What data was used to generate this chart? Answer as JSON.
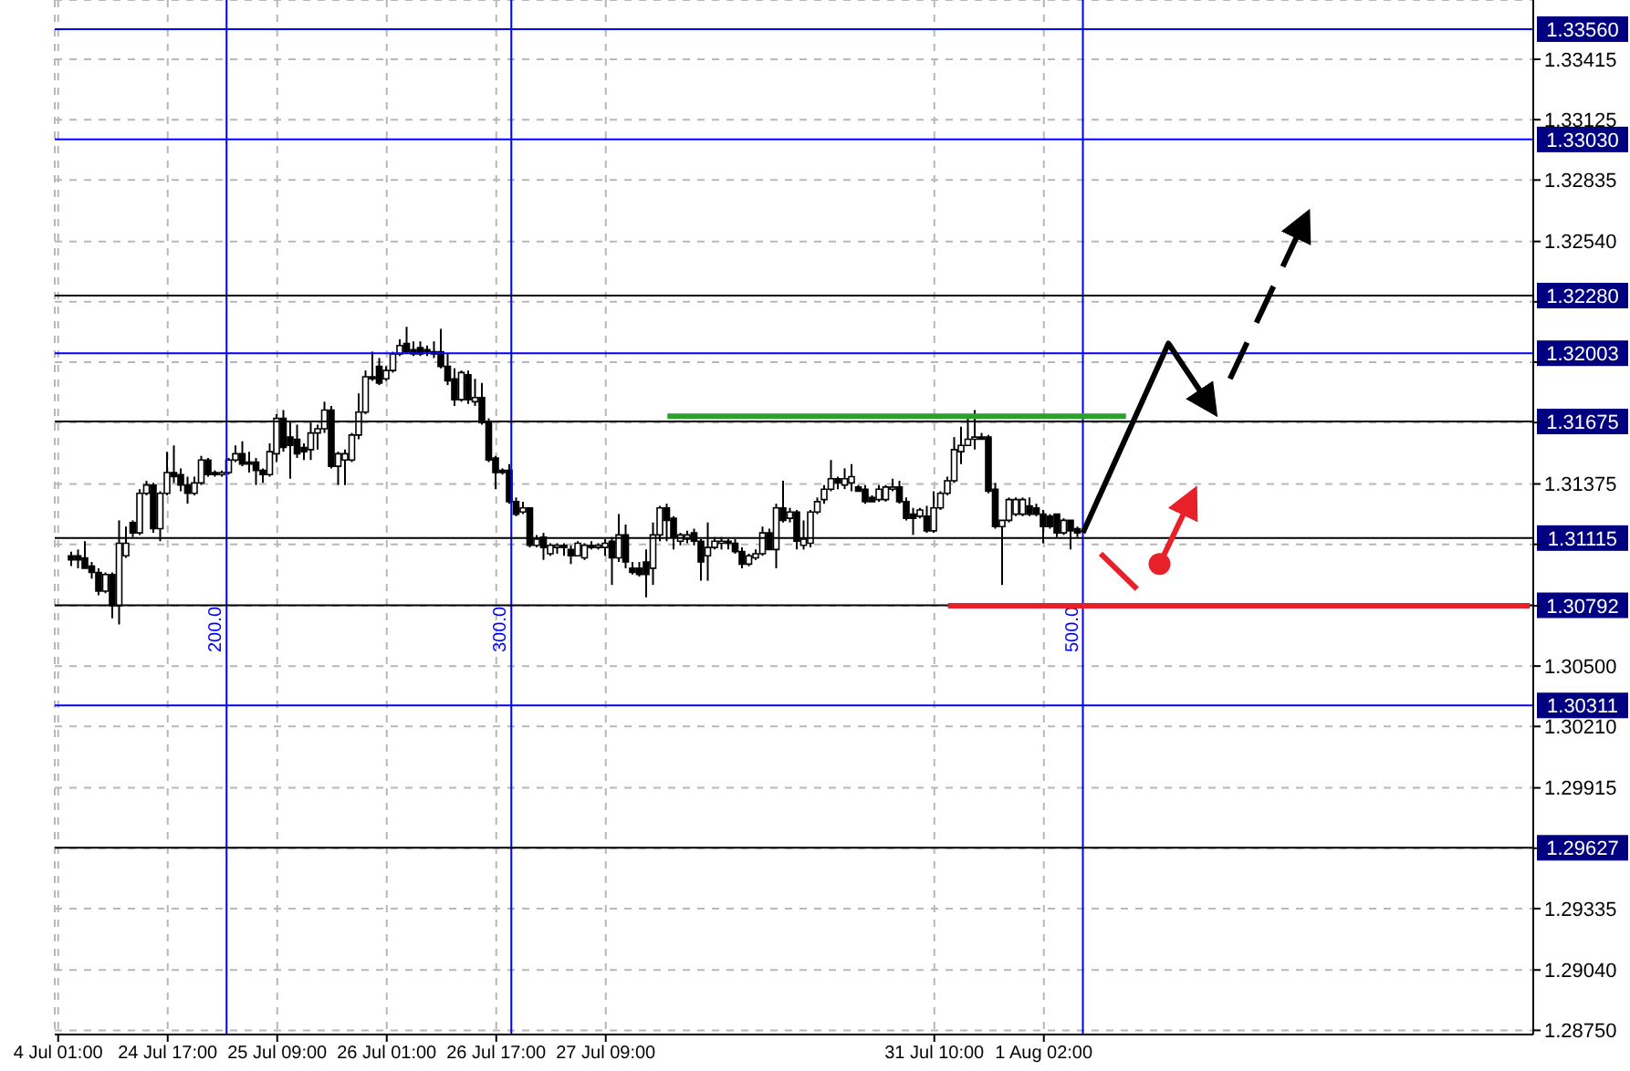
{
  "chart_data": {
    "type": "candlestick",
    "color": "#000000",
    "categories": [
      "4 Jul 01:00",
      null,
      null,
      null,
      null,
      null,
      null,
      null,
      null,
      null,
      null,
      null,
      null,
      null,
      null,
      null,
      "24 Jul 17:00",
      null,
      null,
      null,
      null,
      null,
      null,
      null,
      null,
      null,
      null,
      null,
      null,
      null,
      null,
      null,
      "25 Jul 09:00",
      null,
      null,
      null,
      null,
      null,
      null,
      null,
      null,
      null,
      null,
      null,
      null,
      null,
      null,
      null,
      "26 Jul 01:00",
      null,
      null,
      null,
      null,
      null,
      null,
      null,
      null,
      null,
      null,
      null,
      null,
      null,
      null,
      null,
      "26 Jul 17:00",
      null,
      null,
      null,
      null,
      null,
      null,
      null,
      null,
      null,
      null,
      null,
      null,
      null,
      null,
      null,
      "27 Jul 09:00",
      null,
      null,
      null,
      null,
      null,
      null,
      null,
      null,
      null,
      null,
      null,
      null,
      null,
      null,
      null,
      null,
      null,
      null,
      null,
      null,
      null,
      null,
      null,
      null,
      null,
      null,
      null,
      null,
      null,
      null,
      null,
      null,
      null,
      null,
      null,
      null,
      null,
      null,
      null,
      null,
      null,
      null,
      null,
      null,
      null,
      null,
      null,
      "31 Jul 10:00",
      null,
      null,
      null,
      null,
      null,
      null,
      null,
      null,
      null,
      null,
      null,
      null,
      null,
      null,
      null,
      "1 Aug 02:00",
      null,
      null,
      null,
      null,
      null,
      null,
      null,
      null,
      null,
      null,
      null,
      null,
      null,
      null,
      null,
      null,
      null,
      null,
      null,
      null,
      null,
      null,
      null,
      null,
      null,
      null,
      null,
      null,
      null,
      null,
      null,
      null,
      null,
      null,
      null,
      null,
      null,
      null,
      null,
      null,
      null,
      null,
      null,
      null,
      null,
      null,
      null,
      null,
      null,
      null,
      null,
      null,
      null,
      null,
      null,
      null,
      null,
      null,
      null,
      null,
      null,
      null,
      null,
      null,
      null,
      null,
      null,
      null,
      null,
      null,
      null
    ],
    "ohlc": [
      null,
      null,
      [
        1.3103,
        1.3105,
        1.3098,
        1.3101
      ],
      [
        1.3103,
        1.3106,
        1.3097,
        1.3101
      ],
      [
        1.3102,
        1.311,
        1.3097,
        1.3097
      ],
      [
        1.3098,
        1.31,
        1.3092,
        1.3095
      ],
      [
        1.3095,
        1.3097,
        1.3084,
        1.3086
      ],
      [
        1.3086,
        1.3095,
        1.3085,
        1.3094
      ],
      [
        1.3094,
        1.3095,
        1.3073,
        1.3079
      ],
      [
        1.3079,
        1.312,
        1.307,
        1.3109
      ],
      [
        1.3103,
        1.3117,
        1.3102,
        1.3109
      ],
      [
        1.3119,
        1.312,
        1.3112,
        1.3114
      ],
      [
        1.3114,
        1.3135,
        1.3113,
        1.3133
      ],
      [
        1.3133,
        1.3139,
        1.3132,
        1.3137
      ],
      [
        1.3137,
        1.3138,
        1.3114,
        1.3116
      ],
      [
        1.3116,
        1.3134,
        1.311,
        1.3133
      ],
      [
        1.3133,
        1.3153,
        1.3132,
        1.3143
      ],
      [
        1.3143,
        1.3156,
        1.3138,
        1.3141
      ],
      [
        1.3142,
        1.3145,
        1.3134,
        1.3137
      ],
      [
        1.3137,
        1.3141,
        1.3128,
        1.3133
      ],
      [
        1.3133,
        1.3141,
        1.3132,
        1.3138
      ],
      [
        1.3138,
        1.3151,
        1.3137,
        1.3149
      ],
      [
        1.3149,
        1.315,
        1.3141,
        1.3142
      ],
      [
        1.3143,
        1.3144,
        1.3141,
        1.3142
      ],
      [
        1.3142,
        1.3144,
        1.3141,
        1.3143
      ],
      [
        1.3143,
        1.315,
        1.3142,
        1.3149
      ],
      [
        1.3149,
        1.3156,
        1.3148,
        1.3152
      ],
      [
        1.3152,
        1.3158,
        1.3146,
        1.3147
      ],
      [
        1.3148,
        1.3153,
        1.3143,
        1.3147
      ],
      [
        1.3148,
        1.315,
        1.3137,
        1.3144
      ],
      [
        1.3144,
        1.3145,
        1.3138,
        1.3142
      ],
      [
        1.3142,
        1.3157,
        1.3141,
        1.3153
      ],
      [
        1.3152,
        1.3171,
        1.3148,
        1.3169
      ],
      [
        1.3169,
        1.3173,
        1.3153,
        1.3155
      ],
      [
        1.316,
        1.3167,
        1.314,
        1.3156
      ],
      [
        1.3159,
        1.3166,
        1.315,
        1.3152
      ],
      [
        1.3155,
        1.3157,
        1.3149,
        1.3153
      ],
      [
        1.3154,
        1.3167,
        1.3149,
        1.3162
      ],
      [
        1.3162,
        1.3166,
        1.3154,
        1.3164
      ],
      [
        1.3164,
        1.3177,
        1.3162,
        1.3173
      ],
      [
        1.3173,
        1.3175,
        1.3145,
        1.3146
      ],
      [
        1.3146,
        1.3153,
        1.3137,
        1.3152
      ],
      [
        1.3149,
        1.3154,
        1.3137,
        1.3152
      ],
      [
        1.3149,
        1.3162,
        1.3148,
        1.3161
      ],
      [
        1.3161,
        1.3181,
        1.3159,
        1.3172
      ],
      [
        1.3172,
        1.3192,
        1.3171,
        1.3189
      ],
      [
        1.3189,
        1.3201,
        1.3187,
        1.3188
      ],
      [
        1.3194,
        1.3198,
        1.3185,
        1.3186
      ],
      [
        1.3188,
        1.3194,
        1.3187,
        1.3192
      ],
      [
        1.3192,
        1.3201,
        1.3191,
        1.32
      ],
      [
        1.32,
        1.3207,
        1.3199,
        1.3204
      ],
      [
        1.3205,
        1.3213,
        1.32,
        1.3201
      ],
      [
        1.3202,
        1.3206,
        1.3199,
        1.32
      ],
      [
        1.3203,
        1.3206,
        1.3199,
        1.32
      ],
      [
        1.3202,
        1.3204,
        1.3199,
        1.3201
      ],
      [
        1.3201,
        1.3206,
        1.3198,
        1.32
      ],
      [
        1.3201,
        1.3212,
        1.3193,
        1.3194
      ],
      [
        1.3194,
        1.32,
        1.3185,
        1.3187
      ],
      [
        1.3188,
        1.3193,
        1.3175,
        1.3178
      ],
      [
        1.3178,
        1.3192,
        1.3177,
        1.3191
      ],
      [
        1.319,
        1.3192,
        1.3176,
        1.3178
      ],
      [
        1.3177,
        1.3188,
        1.3175,
        1.3179
      ],
      [
        1.3179,
        1.3186,
        1.3166,
        1.3167
      ],
      [
        1.3167,
        1.3169,
        1.3148,
        1.3149
      ],
      [
        1.315,
        1.3151,
        1.3135,
        1.3143
      ],
      [
        1.3144,
        1.3145,
        1.3142,
        1.3143
      ],
      [
        1.3144,
        1.3147,
        1.3128,
        1.3129
      ],
      [
        1.3129,
        1.3131,
        1.3122,
        1.3123
      ],
      [
        1.3124,
        1.3129,
        1.3123,
        1.3126
      ],
      [
        1.3126,
        1.3126,
        1.3107,
        1.3108
      ],
      [
        1.3108,
        1.3113,
        1.3107,
        1.3111
      ],
      [
        1.3112,
        1.3114,
        1.3101,
        1.3107
      ],
      [
        1.3104,
        1.3109,
        1.3103,
        1.3108
      ],
      [
        1.3107,
        1.3109,
        1.3104,
        1.3108
      ],
      [
        1.3108,
        1.3109,
        1.3103,
        1.3107
      ],
      [
        1.3106,
        1.3108,
        1.3099,
        1.3103
      ],
      [
        1.3103,
        1.311,
        1.3103,
        1.3109
      ],
      [
        1.3102,
        1.3109,
        1.3101,
        1.3108
      ],
      [
        1.3108,
        1.311,
        1.3106,
        1.3107
      ],
      [
        1.3107,
        1.3109,
        1.3106,
        1.3108
      ],
      [
        1.3107,
        1.3111,
        1.3103,
        1.3109
      ],
      [
        1.311,
        1.3112,
        1.3089,
        1.3102
      ],
      [
        1.3102,
        1.3123,
        1.31,
        1.3113
      ],
      [
        1.3113,
        1.3118,
        1.3097,
        1.31
      ],
      [
        1.3097,
        1.31,
        1.3094,
        1.3095
      ],
      [
        1.3097,
        1.31,
        1.3093,
        1.3094
      ],
      [
        1.31,
        1.3106,
        1.3083,
        1.3094
      ],
      [
        1.3097,
        1.3119,
        1.3089,
        1.3113
      ],
      [
        1.3113,
        1.3127,
        1.311,
        1.3126
      ],
      [
        1.3126,
        1.3128,
        1.311,
        1.312
      ],
      [
        1.3121,
        1.3122,
        1.3106,
        1.3112
      ],
      [
        1.311,
        1.3114,
        1.3108,
        1.3113
      ],
      [
        1.3111,
        1.3115,
        1.3109,
        1.3113
      ],
      [
        1.3114,
        1.3116,
        1.3108,
        1.311
      ],
      [
        1.311,
        1.3111,
        1.3091,
        1.31
      ],
      [
        1.3103,
        1.3119,
        1.3091,
        1.3107
      ],
      [
        1.3107,
        1.3112,
        1.3106,
        1.311
      ],
      [
        1.3109,
        1.3112,
        1.3106,
        1.311
      ],
      [
        1.311,
        1.3111,
        1.3106,
        1.3109
      ],
      [
        1.3109,
        1.3111,
        1.3104,
        1.3105
      ],
      [
        1.3105,
        1.3107,
        1.3097,
        1.3099
      ],
      [
        1.3099,
        1.3104,
        1.3098,
        1.3103
      ],
      [
        1.3102,
        1.3106,
        1.3101,
        1.3104
      ],
      [
        1.3104,
        1.3117,
        1.3103,
        1.3114
      ],
      [
        1.3114,
        1.3116,
        1.3106,
        1.3106
      ],
      [
        1.3106,
        1.3128,
        1.3097,
        1.3126
      ],
      [
        1.3126,
        1.3139,
        1.3119,
        1.312
      ],
      [
        1.3121,
        1.3126,
        1.3119,
        1.3124
      ],
      [
        1.3124,
        1.3125,
        1.3106,
        1.311
      ],
      [
        1.3108,
        1.312,
        1.3106,
        1.3111
      ],
      [
        1.3109,
        1.3125,
        1.3107,
        1.3124
      ],
      [
        1.3124,
        1.3131,
        1.3123,
        1.3129
      ],
      [
        1.313,
        1.3137,
        1.3128,
        1.3135
      ],
      [
        1.3135,
        1.3149,
        1.3134,
        1.314
      ],
      [
        1.314,
        1.3141,
        1.3135,
        1.3138
      ],
      [
        1.3137,
        1.3145,
        1.3135,
        1.314
      ],
      [
        1.3138,
        1.3147,
        1.3134,
        1.3141
      ],
      [
        1.3136,
        1.3137,
        1.3134,
        1.3134
      ],
      [
        1.3135,
        1.3137,
        1.3128,
        1.3129
      ],
      [
        1.3131,
        1.3132,
        1.3129,
        1.3129
      ],
      [
        1.313,
        1.3137,
        1.3129,
        1.3135
      ],
      [
        1.313,
        1.3137,
        1.3129,
        1.3136
      ],
      [
        1.3135,
        1.314,
        1.3134,
        1.3136
      ],
      [
        1.3136,
        1.3139,
        1.3128,
        1.3129
      ],
      [
        1.3129,
        1.3131,
        1.312,
        1.3121
      ],
      [
        1.3123,
        1.3126,
        1.3113,
        1.3121
      ],
      [
        1.3122,
        1.3126,
        1.3121,
        1.3125
      ],
      [
        1.3122,
        1.3127,
        1.3114,
        1.3115
      ],
      [
        1.3115,
        1.3134,
        1.3114,
        1.3126
      ],
      [
        1.3126,
        1.3134,
        1.3125,
        1.3133
      ],
      [
        1.3133,
        1.3141,
        1.3132,
        1.3139
      ],
      [
        1.3139,
        1.316,
        1.3138,
        1.3154
      ],
      [
        1.3153,
        1.3165,
        1.3147,
        1.3156
      ],
      [
        1.3156,
        1.3169,
        1.3156,
        1.3159
      ],
      [
        1.3159,
        1.3173,
        1.3154,
        1.316
      ],
      [
        1.316,
        1.3162,
        1.3159,
        1.3159
      ],
      [
        1.316,
        1.3161,
        1.3133,
        1.3134
      ],
      [
        1.3135,
        1.3138,
        1.3116,
        1.3117
      ],
      [
        1.3117,
        1.312,
        1.3089,
        1.312
      ],
      [
        1.312,
        1.3131,
        1.3119,
        1.313
      ],
      [
        1.3123,
        1.3131,
        1.3122,
        1.313
      ],
      [
        1.3123,
        1.3131,
        1.3122,
        1.313
      ],
      [
        1.3127,
        1.3131,
        1.3122,
        1.3123
      ],
      [
        1.3126,
        1.3128,
        1.3122,
        1.3123
      ],
      [
        1.3123,
        1.3125,
        1.3109,
        1.3117
      ],
      [
        1.3122,
        1.3123,
        1.3116,
        1.3117
      ],
      [
        1.3123,
        1.3123,
        1.3112,
        1.3114
      ],
      [
        1.3114,
        1.3121,
        1.3113,
        1.312
      ],
      [
        1.312,
        1.312,
        1.3106,
        1.3115
      ],
      [
        1.3116,
        1.3117,
        1.3112,
        1.3114
      ],
      null,
      null,
      null,
      null,
      null,
      null,
      null,
      null,
      null,
      null,
      null,
      null,
      null,
      null,
      null,
      null,
      null,
      null,
      null,
      null,
      null,
      null,
      null,
      null,
      null,
      null,
      null,
      null,
      null,
      null,
      null,
      null,
      null,
      null,
      null,
      null,
      null,
      null,
      null,
      null,
      null,
      null,
      null,
      null,
      null,
      null,
      null,
      null,
      null,
      null,
      null,
      null,
      null,
      null,
      null,
      null,
      null,
      null,
      null,
      null,
      null,
      null,
      null,
      null,
      null,
      null
    ],
    "series": [
      {
        "type": "line",
        "color": "#2ca02c",
        "values": [
          null,
          null,
          null,
          null,
          null,
          null,
          null,
          null,
          null,
          null,
          null,
          null,
          null,
          null,
          null,
          null,
          null,
          null,
          null,
          null,
          null,
          null,
          null,
          null,
          null,
          null,
          null,
          null,
          null,
          null,
          null,
          null,
          null,
          null,
          null,
          null,
          null,
          null,
          null,
          null,
          null,
          null,
          null,
          null,
          null,
          null,
          null,
          null,
          null,
          null,
          null,
          null,
          null,
          null,
          null,
          null,
          null,
          null,
          null,
          null,
          null,
          null,
          null,
          null,
          null,
          null,
          null,
          null,
          null,
          null,
          null,
          null,
          null,
          null,
          null,
          null,
          null,
          null,
          null,
          null,
          null,
          null,
          null,
          null,
          null,
          null,
          null,
          null,
          null,
          1.317,
          null,
          null,
          null,
          null,
          null,
          null,
          null,
          null,
          null,
          null,
          null,
          null,
          null,
          null,
          null,
          null,
          null,
          null,
          null,
          null,
          null,
          null,
          null,
          null,
          null,
          null,
          null,
          null,
          null,
          null,
          null,
          null,
          null,
          null,
          null,
          null,
          null,
          null,
          null,
          null,
          null,
          null,
          null,
          null,
          null,
          null,
          null,
          null,
          null,
          null,
          null,
          null,
          null,
          null,
          null,
          null,
          null,
          null,
          null,
          null,
          null,
          null,
          null,
          null,
          null,
          null,
          1.317,
          null,
          null,
          null,
          null,
          null,
          null,
          null,
          null,
          null,
          null,
          null,
          null,
          null,
          null,
          null,
          null,
          null,
          null,
          null,
          null,
          null,
          null,
          null,
          null,
          null,
          null,
          null,
          null,
          null,
          null,
          null,
          null,
          null,
          null,
          null,
          null,
          null,
          null,
          null,
          null,
          null,
          null,
          null,
          null,
          null,
          null,
          null,
          null,
          null,
          null,
          null,
          null,
          null,
          null,
          null,
          null,
          null,
          null,
          null
        ]
      },
      {
        "type": "line",
        "color": "#e8202a",
        "values": [
          null,
          null,
          null,
          null,
          null,
          null,
          null,
          null,
          null,
          null,
          null,
          null,
          null,
          null,
          null,
          null,
          null,
          null,
          null,
          null,
          null,
          null,
          null,
          null,
          null,
          null,
          null,
          null,
          null,
          null,
          null,
          null,
          null,
          null,
          null,
          null,
          null,
          null,
          null,
          null,
          null,
          null,
          null,
          null,
          null,
          null,
          null,
          null,
          null,
          null,
          null,
          null,
          null,
          null,
          null,
          null,
          null,
          null,
          null,
          null,
          null,
          null,
          null,
          null,
          null,
          null,
          null,
          null,
          null,
          null,
          null,
          null,
          null,
          null,
          null,
          null,
          null,
          null,
          null,
          null,
          null,
          null,
          null,
          null,
          null,
          null,
          null,
          null,
          null,
          null,
          null,
          null,
          null,
          null,
          null,
          null,
          null,
          null,
          null,
          null,
          null,
          null,
          null,
          null,
          null,
          null,
          null,
          null,
          null,
          null,
          null,
          null,
          null,
          null,
          null,
          null,
          null,
          null,
          null,
          null,
          null,
          null,
          null,
          null,
          null,
          null,
          null,
          null,
          null,
          null,
          1.3079,
          null,
          null,
          null,
          null,
          null,
          null,
          null,
          null,
          null,
          null,
          null,
          null,
          null,
          null,
          null,
          null,
          null,
          null,
          null,
          null,
          null,
          null,
          null,
          null,
          null,
          null,
          null,
          null,
          null,
          null,
          null,
          null,
          null,
          null,
          null,
          null,
          null,
          null,
          null,
          null,
          null,
          null,
          null,
          null,
          null,
          null,
          null,
          null,
          null,
          null,
          null,
          null,
          null,
          null,
          null,
          null,
          null,
          null,
          null,
          null,
          null,
          null,
          null,
          null,
          null,
          null,
          null,
          null,
          null,
          null,
          null,
          null,
          null,
          null,
          null,
          null,
          null,
          null,
          null,
          null,
          null,
          null,
          null,
          null,
          1.3079
        ]
      }
    ],
    "ylim": [
      1.2873,
      1.337
    ],
    "yticks": [
      1.33415,
      1.33125,
      1.32835,
      {
        "value": 1.3254,
        "label": "1.32540"
      },
      {
        "value": 1.3225,
        "label": null
      },
      {
        "value": 1.3196,
        "label": null
      },
      {
        "value": 1.3167,
        "label": null
      },
      1.31375,
      {
        "value": 1.31085,
        "label": null
      },
      {
        "value": 1.3079,
        "label": null
      },
      {
        "value": 1.305,
        "label": "1.30500"
      },
      {
        "value": 1.3021,
        "label": "1.30210"
      },
      1.29915,
      {
        "value": 1.29625,
        "label": null
      },
      1.29335,
      {
        "value": 1.2904,
        "label": "1.29040"
      },
      {
        "value": 1.2875,
        "label": "1.28750"
      }
    ],
    "grid": true,
    "annotations": [
      "200.0",
      "300.0",
      "500.0"
    ],
    "ref_lines": [
      {
        "axis": "y",
        "value": 1.3356,
        "label": "1.33560",
        "color": "#0000ff"
      },
      {
        "axis": "y",
        "value": 1.3303,
        "label": "1.33030",
        "color": "#0000ff"
      },
      {
        "axis": "y",
        "value": 1.3228,
        "label": "1.32280",
        "color": "#000000"
      },
      {
        "axis": "y",
        "value": 1.32003,
        "label": "1.32003",
        "color": "#0000ff"
      },
      {
        "axis": "y",
        "value": 1.31675,
        "label": "1.31675",
        "color": "#000000"
      },
      {
        "axis": "y",
        "value": 1.31115,
        "label": "1.31115",
        "color": "#000000"
      },
      {
        "axis": "y",
        "value": 1.30792,
        "label": "1.30792",
        "color": "#000000"
      },
      {
        "axis": "y",
        "value": 1.30311,
        "label": "1.30311",
        "color": "#0000ff"
      },
      {
        "axis": "y",
        "value": 1.29627,
        "label": "1.29627",
        "color": "#000000"
      }
    ]
  }
}
